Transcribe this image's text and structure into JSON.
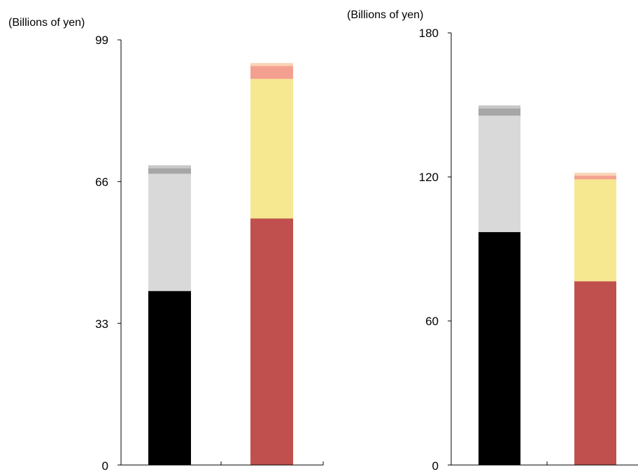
{
  "chart_data": [
    {
      "type": "bar",
      "stacked": true,
      "unit_label": "(Billions of yen)",
      "ylim": [
        0,
        99
      ],
      "yticks": [
        "0",
        "33",
        "66",
        "99"
      ],
      "bars": [
        {
          "segments": [
            {
              "value": 40.5,
              "color": "#000000"
            },
            {
              "value": 27.3,
              "color": "#d9d9d9"
            },
            {
              "value": 1.3,
              "color": "#a6a6a6"
            },
            {
              "value": 0.7,
              "color": "#c8c8c8"
            }
          ]
        },
        {
          "segments": [
            {
              "value": 57.4,
              "color": "#c0504d"
            },
            {
              "value": 32.5,
              "color": "#f6e791"
            },
            {
              "value": 3.0,
              "color": "#f4a090"
            },
            {
              "value": 0.7,
              "color": "#f9d3b5"
            }
          ]
        }
      ]
    },
    {
      "type": "bar",
      "stacked": true,
      "unit_label": "(Billions of yen)",
      "ylim": [
        0,
        180
      ],
      "yticks": [
        "0",
        "60",
        "120",
        "180"
      ],
      "bars": [
        {
          "segments": [
            {
              "value": 97.0,
              "color": "#000000"
            },
            {
              "value": 48.5,
              "color": "#d9d9d9"
            },
            {
              "value": 3.0,
              "color": "#a6a6a6"
            },
            {
              "value": 1.3,
              "color": "#c8c8c8"
            }
          ]
        },
        {
          "segments": [
            {
              "value": 76.5,
              "color": "#c0504d"
            },
            {
              "value": 42.5,
              "color": "#f6e791"
            },
            {
              "value": 1.5,
              "color": "#f4a090"
            },
            {
              "value": 1.2,
              "color": "#f9d3b5"
            }
          ]
        }
      ]
    }
  ]
}
